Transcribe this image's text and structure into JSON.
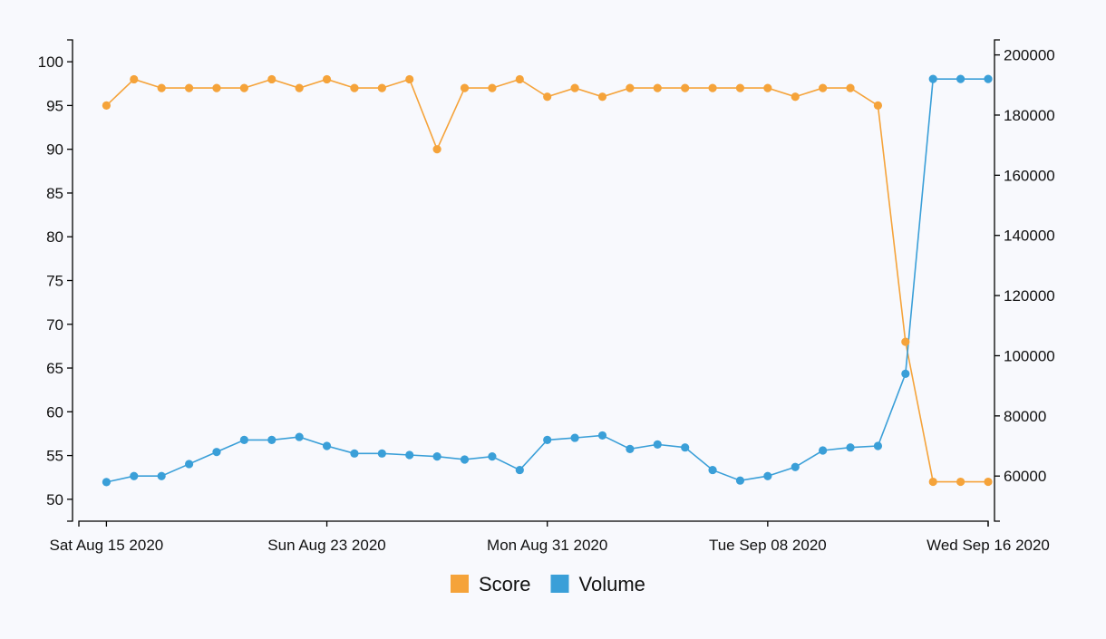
{
  "chart_data": {
    "type": "line",
    "title": "",
    "x_axis": {
      "type": "date",
      "range": [
        "2020-08-14",
        "2020-09-16"
      ],
      "tick_labels": [
        "Sat Aug 15 2020",
        "Sun Aug 23 2020",
        "Mon Aug 31 2020",
        "Tue Sep 08 2020",
        "Wed Sep 16 2020"
      ]
    },
    "y_left": {
      "series": "Score",
      "ylim": [
        47.5,
        102.5
      ],
      "ticks": [
        50,
        55,
        60,
        65,
        70,
        75,
        80,
        85,
        90,
        95,
        100
      ]
    },
    "y_right": {
      "series": "Volume",
      "ylim": [
        45000,
        205000
      ],
      "ticks": [
        60000,
        80000,
        100000,
        120000,
        140000,
        160000,
        180000,
        200000
      ]
    },
    "dates": [
      "2020-08-15",
      "2020-08-16",
      "2020-08-17",
      "2020-08-18",
      "2020-08-19",
      "2020-08-20",
      "2020-08-21",
      "2020-08-22",
      "2020-08-23",
      "2020-08-24",
      "2020-08-25",
      "2020-08-26",
      "2020-08-27",
      "2020-08-28",
      "2020-08-29",
      "2020-08-30",
      "2020-08-31",
      "2020-09-01",
      "2020-09-02",
      "2020-09-03",
      "2020-09-04",
      "2020-09-05",
      "2020-09-06",
      "2020-09-07",
      "2020-09-08",
      "2020-09-09",
      "2020-09-10",
      "2020-09-11",
      "2020-09-12",
      "2020-09-13",
      "2020-09-14",
      "2020-09-15",
      "2020-09-16"
    ],
    "series": [
      {
        "name": "Score",
        "axis": "left",
        "color": "#f5a33a",
        "values": [
          95,
          98,
          97,
          97,
          97,
          97,
          98,
          97,
          98,
          97,
          97,
          98,
          90,
          97,
          97,
          98,
          96,
          97,
          96,
          97,
          97,
          97,
          97,
          97,
          97,
          96,
          97,
          97,
          95,
          68,
          52,
          52,
          52
        ]
      },
      {
        "name": "Volume",
        "axis": "right",
        "color": "#3a9fd8",
        "values": [
          58000,
          60000,
          60000,
          64000,
          68000,
          72000,
          72000,
          73000,
          70000,
          67500,
          67500,
          67000,
          66500,
          65500,
          66500,
          62000,
          72000,
          72700,
          73500,
          69000,
          70500,
          69500,
          62000,
          58500,
          60000,
          63000,
          68500,
          69500,
          70000,
          94000,
          192000,
          192000,
          192000
        ]
      }
    ],
    "legend": {
      "position": "bottom-center",
      "items": [
        "Score",
        "Volume"
      ]
    }
  }
}
